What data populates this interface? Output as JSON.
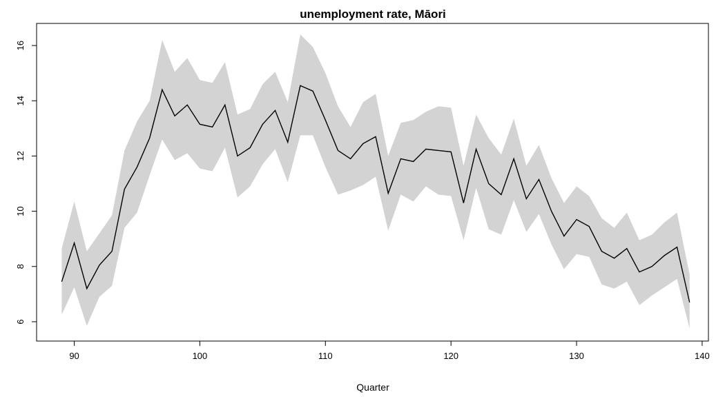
{
  "chart_data": {
    "type": "line",
    "title": "unemployment rate, Māori",
    "xlabel": "Quarter",
    "ylabel": "",
    "xlim": [
      87,
      140.5
    ],
    "ylim": [
      5.3,
      16.8
    ],
    "xticks": [
      90,
      100,
      110,
      120,
      130,
      140
    ],
    "yticks": [
      6,
      8,
      10,
      12,
      14,
      16
    ],
    "grid": false,
    "legend": "none",
    "colors": {
      "line": "#000000",
      "band": "#d3d3d3",
      "frame": "#000000"
    },
    "series": [
      {
        "x": [
          89,
          90,
          91,
          92,
          93,
          94,
          95,
          96,
          97,
          98,
          99,
          100,
          101,
          102,
          103,
          104,
          105,
          106,
          107,
          108,
          109,
          110,
          111,
          112,
          113,
          114,
          115,
          116,
          117,
          118,
          119,
          120,
          121,
          122,
          123,
          124,
          125,
          126,
          127,
          128,
          129,
          130,
          131,
          132,
          133,
          134,
          135,
          136,
          137,
          138,
          139
        ],
        "values": [
          7.45,
          8.85,
          7.2,
          8.05,
          8.55,
          10.8,
          11.6,
          12.65,
          14.4,
          13.45,
          13.85,
          13.15,
          13.05,
          13.85,
          12.0,
          12.3,
          13.15,
          13.65,
          12.5,
          14.55,
          14.35,
          13.3,
          12.2,
          11.9,
          12.45,
          12.7,
          10.65,
          11.9,
          11.8,
          12.25,
          12.2,
          12.15,
          10.3,
          12.25,
          11.0,
          10.6,
          11.9,
          10.45,
          11.15,
          10.0,
          9.1,
          9.7,
          9.45,
          8.55,
          8.3,
          8.65,
          7.8,
          8.0,
          8.4,
          8.7,
          6.7
        ],
        "lower": [
          6.25,
          7.25,
          5.85,
          6.9,
          7.3,
          9.4,
          9.95,
          11.3,
          12.6,
          11.85,
          12.1,
          11.55,
          11.45,
          12.3,
          10.5,
          10.9,
          11.7,
          12.25,
          11.05,
          12.75,
          12.75,
          11.6,
          10.6,
          10.75,
          10.95,
          11.25,
          9.3,
          10.6,
          10.35,
          10.9,
          10.6,
          10.55,
          8.95,
          10.85,
          9.35,
          9.15,
          10.4,
          9.25,
          9.9,
          8.8,
          7.9,
          8.45,
          8.35,
          7.35,
          7.2,
          7.45,
          6.6,
          6.95,
          7.25,
          7.55,
          5.75
        ],
        "upper": [
          8.65,
          10.35,
          8.55,
          9.2,
          9.85,
          12.2,
          13.25,
          14.0,
          16.2,
          15.05,
          15.55,
          14.75,
          14.65,
          15.4,
          13.5,
          13.7,
          14.6,
          15.05,
          13.95,
          16.4,
          15.95,
          15.0,
          13.8,
          13.05,
          13.95,
          14.25,
          12.0,
          13.2,
          13.3,
          13.6,
          13.8,
          13.75,
          11.65,
          13.5,
          12.65,
          12.05,
          13.35,
          11.65,
          12.4,
          11.2,
          10.3,
          10.9,
          10.55,
          9.75,
          9.4,
          9.95,
          8.95,
          9.15,
          9.6,
          9.95,
          7.7
        ]
      }
    ]
  }
}
